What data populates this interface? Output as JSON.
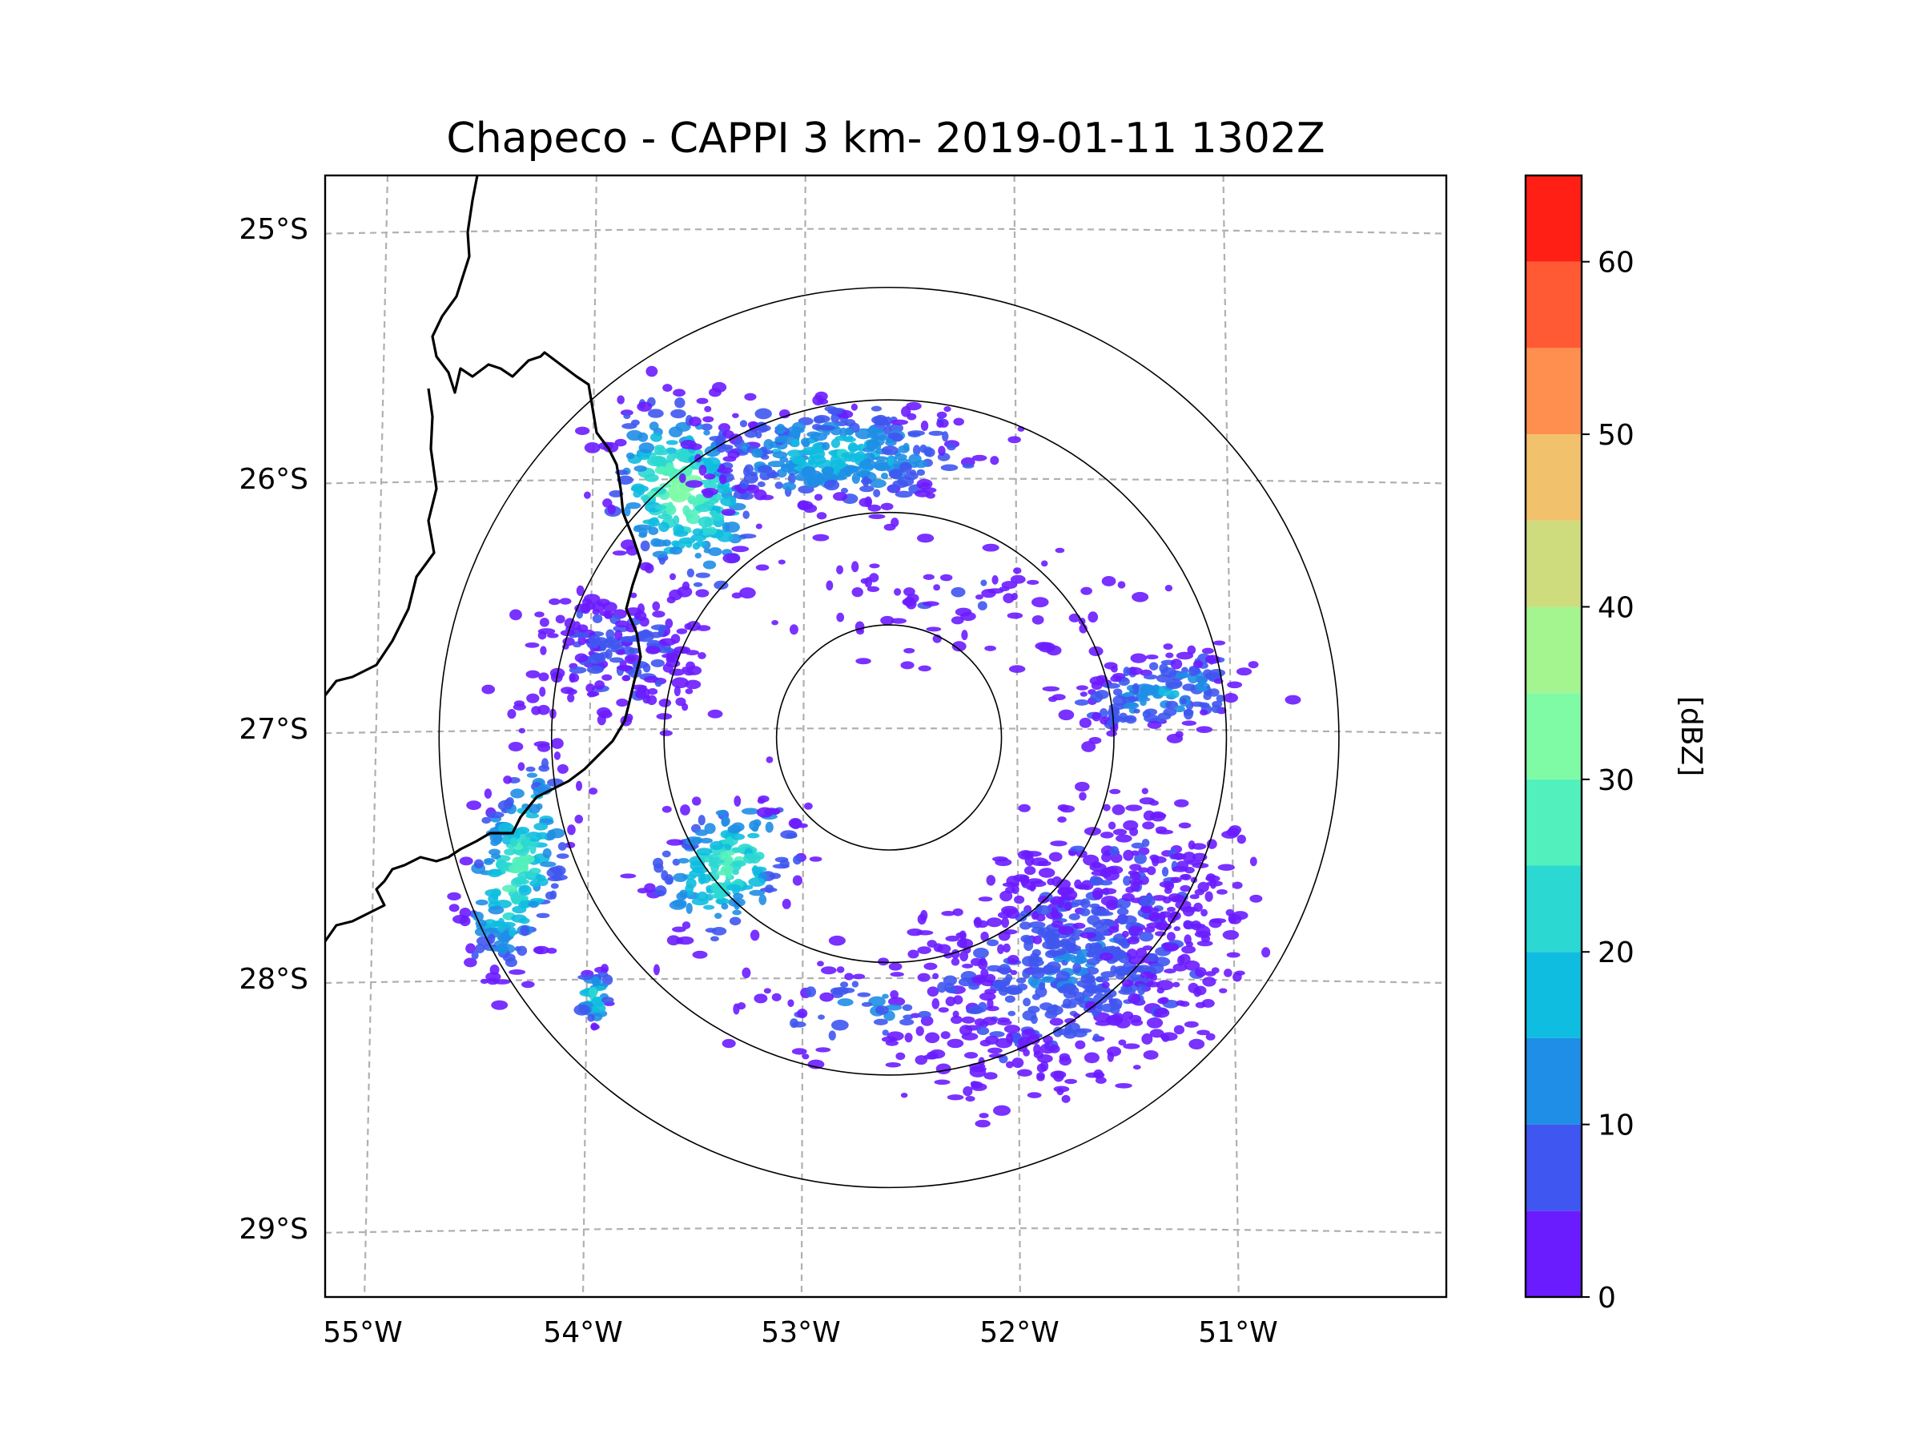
{
  "title": "Chapeco - CAPPI 3 km- 2019-01-11 1302Z",
  "map": {
    "lon_range": [
      -55.18,
      -50.05
    ],
    "lat_range": [
      -29.27,
      -24.78
    ],
    "lon_ticks": [
      -55,
      -54,
      -53,
      -52,
      -51
    ],
    "lon_labels": [
      "55°W",
      "54°W",
      "53°W",
      "52°W",
      "51°W"
    ],
    "lat_ticks": [
      -25,
      -26,
      -27,
      -28,
      -29
    ],
    "lat_labels": [
      "25°S",
      "26°S",
      "27°S",
      "28°S",
      "29°S"
    ],
    "gridlines": "dashed",
    "radar_center": {
      "lon": -52.6,
      "lat": -27.03
    },
    "range_rings_km": [
      50,
      100,
      150,
      200
    ]
  },
  "colorbar": {
    "label": "[dBZ]",
    "ticks": [
      0,
      10,
      20,
      30,
      40,
      50,
      60
    ],
    "tick_labels": [
      "0",
      "10",
      "20",
      "30",
      "40",
      "50",
      "60"
    ],
    "levels": [
      0,
      5,
      10,
      15,
      20,
      25,
      30,
      35,
      40,
      45,
      50,
      55,
      60,
      65
    ],
    "colors": [
      "#6a1cff",
      "#3f57f0",
      "#1f8ee6",
      "#0fbde0",
      "#2bd8d2",
      "#52f0bd",
      "#7ffba6",
      "#a4f58f",
      "#cfdc7e",
      "#f2c16b",
      "#ff8f4f",
      "#ff5a33",
      "#ff1f15"
    ]
  },
  "chart_data": {
    "type": "radar_ppi_map",
    "title": "Chapeco - CAPPI 3 km- 2019-01-11 1302Z",
    "units": "dBZ",
    "echo_regions": [
      {
        "name": "northwest band",
        "lon": -53.6,
        "lat": -26.2,
        "max_dbz": 35
      },
      {
        "name": "north cluster",
        "lon": -52.9,
        "lat": -25.9,
        "max_dbz": 20
      },
      {
        "name": "west band",
        "lon": -54.3,
        "lat": -27.5,
        "max_dbz": 30
      },
      {
        "name": "southwest cell",
        "lon": -53.95,
        "lat": -28.05,
        "max_dbz": 25
      },
      {
        "name": "central west cluster",
        "lon": -53.3,
        "lat": -27.5,
        "max_dbz": 30
      },
      {
        "name": "southeast area",
        "lon": -51.7,
        "lat": -28.0,
        "max_dbz": 10
      },
      {
        "name": "east band",
        "lon": -51.4,
        "lat": -26.85,
        "max_dbz": 15
      }
    ]
  }
}
